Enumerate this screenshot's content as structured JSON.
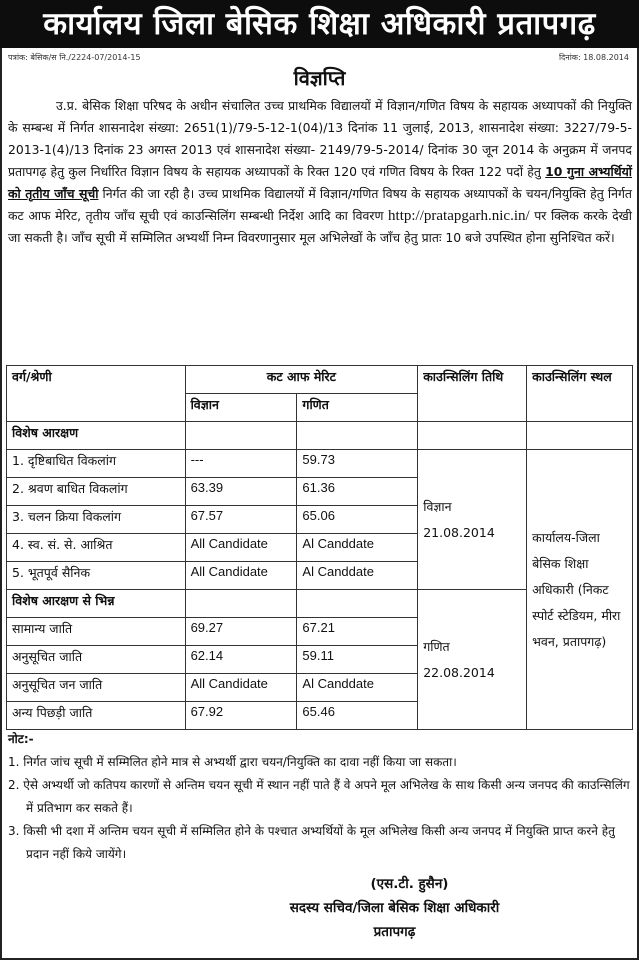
{
  "header": {
    "office_title": "कार्यालय जिला बेसिक शिक्षा अधिकारी प्रतापगढ़"
  },
  "ref_no": "पत्रांक: बेसिक/स नि./2224-07/2014-15",
  "date": "दिनांक: 18.08.2014",
  "notice_title": "विज्ञप्ति",
  "body": {
    "text1": "उ.प्र. बेसिक शिक्षा परिषद के अधीन संचालित उच्च प्राथमिक विद्यालयों में विज्ञान/गणित विषय के सहायक अध्यापकों की नियुक्ति के सम्बन्ध में निर्गत शासनादेश संख्या: 2651(1)/79-5-12-1(04)/13 दिनांक 11 जुलाई, 2013, शासनादेश संख्या: 3227/79-5-2013-1(4)/13 दिनांक 23 अगस्त 2013 एवं शासनादेश संख्या- 2149/79-5-2014/ दिनांक 30 जून 2014 के अनुक्रम में जनपद प्रतापगढ़ हेतु कुल निर्धारित विज्ञान विषय के सहायक अध्यापकों के रिक्त 120 एवं गणित विषय के रिक्त 122 पदों हेतु ",
    "text_bold": "10 गुना अभ्यर्थियों को तृतीय जाँच सूची",
    "text2": " निर्गत की जा रही है। उच्च प्राथमिक विद्यालयों में विज्ञान/गणित विषय के सहायक अध्यापकों के चयन/नियुक्ति हेतु निर्गत कट आफ मेरिट, तृतीय जाँच सूची एवं काउन्सिलिंग सम्बन्धी निर्देश आदि का विवरण ",
    "url": "http://pratapgarh.nic.in/",
    "text3": " पर क्लिक करके देखी जा सकती है। जाँच सूची में सम्मिलित अभ्यर्थी निम्न विवरणानुसार मूल अभिलेखों के जाँच हेतु प्रातः 10 बजे उपस्थित होना सुनिश्चित करें।"
  },
  "table": {
    "headers": {
      "category": "वर्ग/श्रेणी",
      "cutoff": "कट आफ मेरिट",
      "science": "विज्ञान",
      "maths": "गणित",
      "counselling_date": "काउन्सिलिंग तिथि",
      "counselling_venue": "काउन्सिलिंग स्थल"
    },
    "section1": "विशेष आरक्षण",
    "section1_rows": [
      {
        "category": "1. दृष्टिबाधित विकलांग",
        "science": "---",
        "maths": "59.73"
      },
      {
        "category": "2. श्रवण बाधित विकलांग",
        "science": "63.39",
        "maths": "61.36"
      },
      {
        "category": "3. चलन क्रिया विकलांग",
        "science": "67.57",
        "maths": "65.06"
      },
      {
        "category": "4. स्व. सं. से. आश्रित",
        "science": "All Candidate",
        "maths": "Al Canddate"
      },
      {
        "category": "5. भूतपूर्व सैनिक",
        "science": "All Candidate",
        "maths": "Al Canddate"
      }
    ],
    "section2": "विशेष आरक्षण से भिन्न",
    "section2_rows": [
      {
        "category": "सामान्य जाति",
        "science": "69.27",
        "maths": "67.21"
      },
      {
        "category": "अनुसूचित जाति",
        "science": "62.14",
        "maths": "59.11"
      },
      {
        "category": "अनुसूचित जन जाति",
        "science": "All Candidate",
        "maths": "Al Canddate"
      },
      {
        "category": "अन्य पिछड़ी जाति",
        "science": "67.92",
        "maths": "65.46"
      }
    ],
    "date_science": {
      "subject": "विज्ञान",
      "date": "21.08.2014"
    },
    "date_maths": {
      "subject": "गणित",
      "date": "22.08.2014"
    },
    "venue": "कार्यालय-जिला बेसिक शिक्षा अधिकारी (निकट स्पोर्ट स्टेडियम, मीरा भवन, प्रतापगढ़)"
  },
  "notes": {
    "heading": "नोट:-",
    "items": [
      "1. निर्गत जांच सूची में सम्मिलित होने मात्र से अभ्यर्थी द्वारा चयन/नियुक्ति का दावा नहीं किया जा सकता।",
      "2. ऐसे अभ्यर्थी जो कतिपय कारणों से अन्तिम चयन सूची में स्थान नहीं पाते हैं वे अपने मूल अभिलेख के साथ किसी अन्य जनपद की काउन्सिलिंग में प्रतिभाग कर सकते हैं।",
      "3. किसी भी दशा में अन्तिम चयन सूची में सम्मिलित होने के पश्चात अभ्यर्थियों के मूल अभिलेख किसी अन्य जनपद में नियुक्ति प्राप्त करने हेतु प्रदान नहीं किये जायेंगे।"
    ]
  },
  "signature": {
    "name": "(एस.टी. हुसैन)",
    "designation": "सदस्य सचिव/जिला बेसिक शिक्षा अधिकारी",
    "place": "प्रतापगढ़"
  }
}
